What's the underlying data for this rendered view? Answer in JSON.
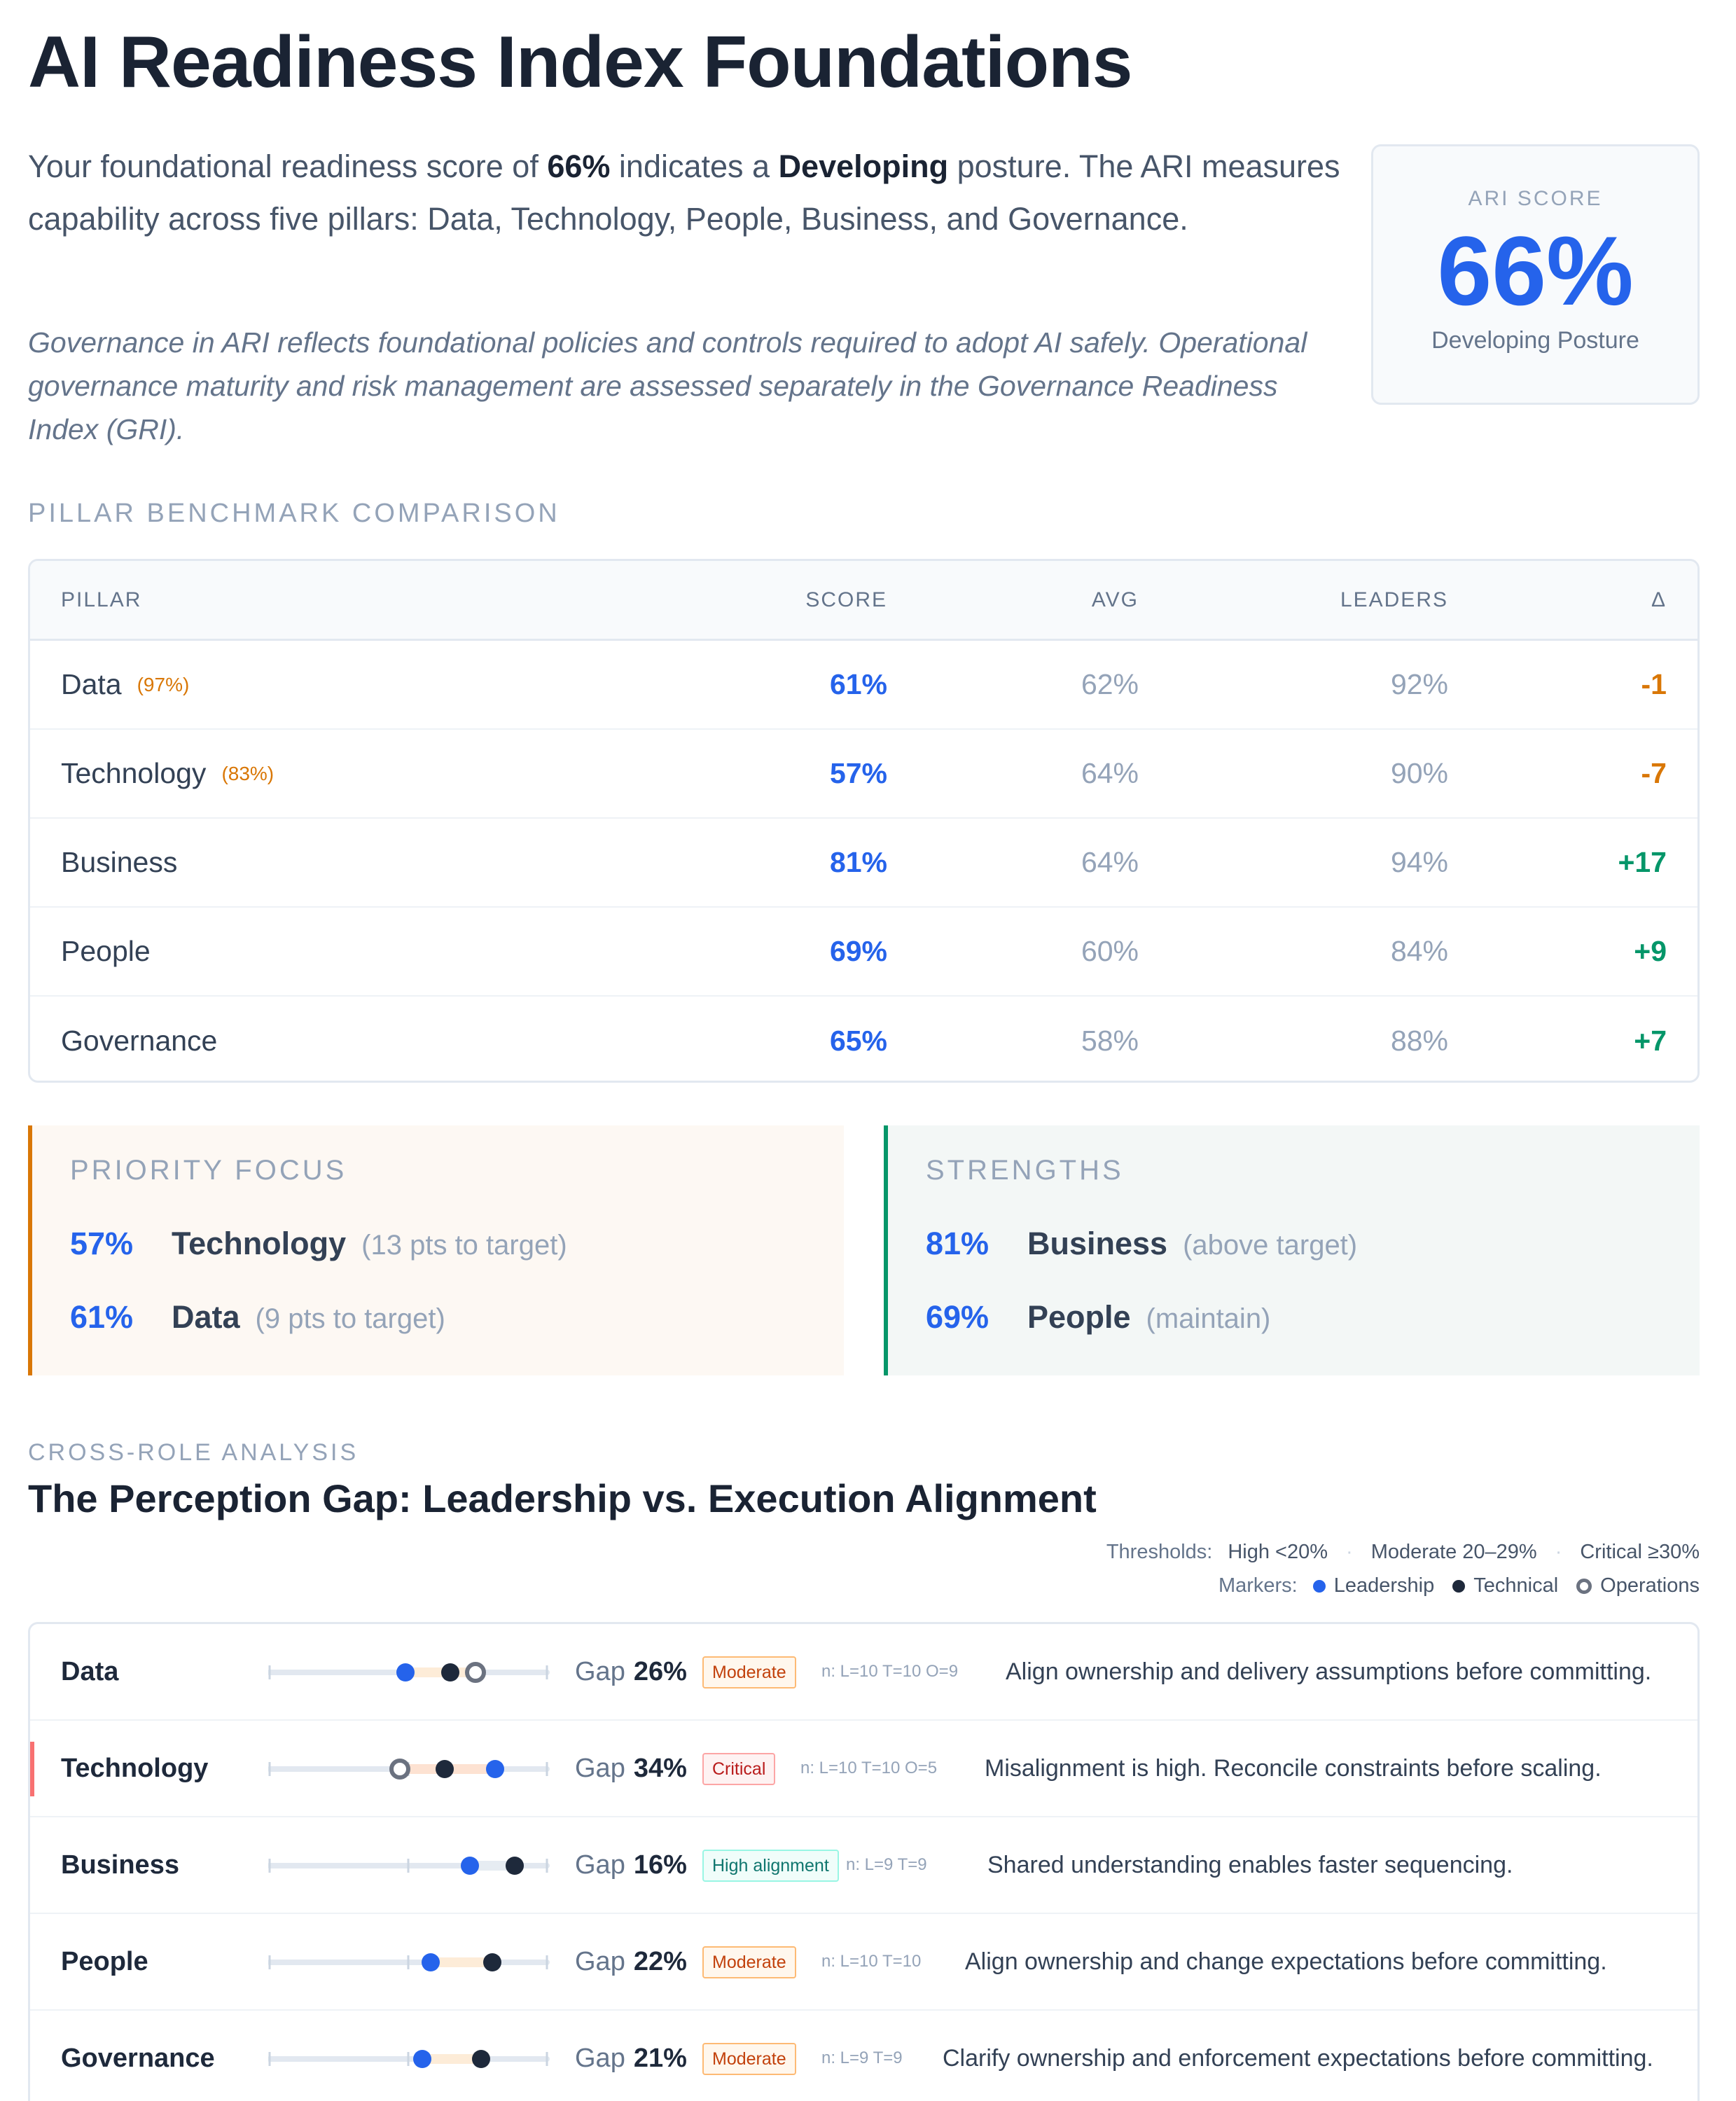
{
  "title": "AI Readiness Index Foundations",
  "intro": {
    "p1": "Your foundational readiness score of ",
    "score": "66%",
    "p2": " indicates a ",
    "posture": "Developing",
    "p3": " posture. The ARI measures capability across five pillars: Data, Technology, People, Business, and Governance.",
    "note": "Governance in ARI reflects foundational policies and controls required to adopt AI safely. Operational governance maturity and risk management are assessed separately in the Governance Readiness Index (GRI)."
  },
  "score_card": {
    "label": "ARI SCORE",
    "value": "66%",
    "sub": "Developing Posture",
    "accent": "#2563eb"
  },
  "benchmark": {
    "section_label": "PILLAR BENCHMARK COMPARISON",
    "headers": [
      "PILLAR",
      "SCORE",
      "AVG",
      "LEADERS",
      "Δ"
    ],
    "rows": [
      {
        "pillar": "Data",
        "pct": "(97%)",
        "score": "61%",
        "avg": "62%",
        "leaders": "92%",
        "delta": "-1",
        "trend": "neg"
      },
      {
        "pillar": "Technology",
        "pct": "(83%)",
        "score": "57%",
        "avg": "64%",
        "leaders": "90%",
        "delta": "-7",
        "trend": "neg"
      },
      {
        "pillar": "Business",
        "pct": "",
        "score": "81%",
        "avg": "64%",
        "leaders": "94%",
        "delta": "+17",
        "trend": "pos"
      },
      {
        "pillar": "People",
        "pct": "",
        "score": "69%",
        "avg": "60%",
        "leaders": "84%",
        "delta": "+9",
        "trend": "pos"
      },
      {
        "pillar": "Governance",
        "pct": "",
        "score": "65%",
        "avg": "58%",
        "leaders": "88%",
        "delta": "+7",
        "trend": "pos"
      }
    ]
  },
  "priority": {
    "title": "PRIORITY FOCUS",
    "items": [
      {
        "value": "57%",
        "name": "Technology",
        "detail": "(13 pts to target)"
      },
      {
        "value": "61%",
        "name": "Data",
        "detail": "(9 pts to target)"
      }
    ]
  },
  "strengths": {
    "title": "STRENGTHS",
    "items": [
      {
        "value": "81%",
        "name": "Business",
        "detail": "(above target)"
      },
      {
        "value": "69%",
        "name": "People",
        "detail": "(maintain)"
      }
    ]
  },
  "cross_role": {
    "section_label": "CROSS-ROLE ANALYSIS",
    "title": "The Perception Gap: Leadership vs. Execution Alignment",
    "thresholds_label": "Thresholds:",
    "thresholds": [
      "High <20%",
      "Moderate 20–29%",
      "Critical ≥30%"
    ],
    "markers_label": "Markers:",
    "markers": [
      "Leadership",
      "Technical",
      "Operations"
    ],
    "gap_label": "Gap",
    "rows": [
      {
        "pillar": "Data",
        "gap": "26%",
        "badge": "Moderate",
        "level": "moderate",
        "n": "n: L=10 T=10 O=9",
        "message": "Align ownership and delivery assumptions before committing.",
        "leadership": 0.49,
        "technical": 0.65,
        "operations": 0.74
      },
      {
        "pillar": "Technology",
        "gap": "34%",
        "badge": "Critical",
        "level": "critical",
        "n": "n: L=10 T=10 O=5",
        "message": "Misalignment is high. Reconcile constraints before scaling.",
        "leadership": 0.81,
        "technical": 0.63,
        "operations": 0.47
      },
      {
        "pillar": "Business",
        "gap": "16%",
        "badge": "High alignment",
        "level": "high",
        "n": "n: L=9 T=9",
        "message": "Shared understanding enables faster sequencing.",
        "leadership": 0.72,
        "technical": 0.88,
        "operations": null
      },
      {
        "pillar": "People",
        "gap": "22%",
        "badge": "Moderate",
        "level": "moderate",
        "n": "n: L=10 T=10",
        "message": "Align ownership and change expectations before committing.",
        "leadership": 0.58,
        "technical": 0.8,
        "operations": null
      },
      {
        "pillar": "Governance",
        "gap": "21%",
        "badge": "Moderate",
        "level": "moderate",
        "n": "n: L=9 T=9",
        "message": "Clarify ownership and enforcement expectations before committing.",
        "leadership": 0.55,
        "technical": 0.76,
        "operations": null
      }
    ]
  }
}
